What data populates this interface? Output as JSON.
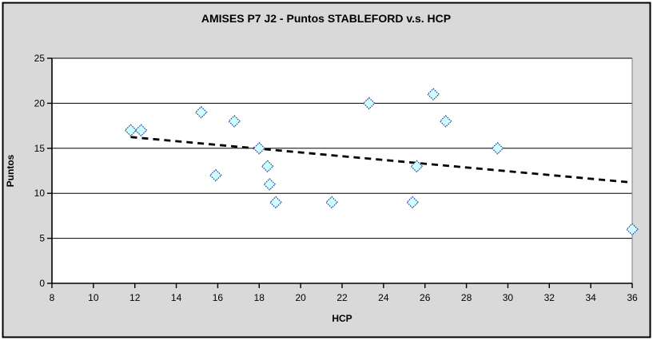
{
  "chart_data": {
    "type": "scatter",
    "title": "AMISES P7 J2 - Puntos STABLEFORD v.s. HCP",
    "xlabel": "HCP",
    "ylabel": "Puntos",
    "xlim": [
      8,
      36
    ],
    "ylim": [
      0,
      25
    ],
    "x_ticks": [
      8,
      10,
      12,
      14,
      16,
      18,
      20,
      22,
      24,
      26,
      28,
      30,
      32,
      34,
      36
    ],
    "y_ticks": [
      0,
      5,
      10,
      15,
      20,
      25
    ],
    "grid": "horizontal-major",
    "legend": "none",
    "points": [
      [
        11.8,
        17
      ],
      [
        12.3,
        17
      ],
      [
        15.2,
        19
      ],
      [
        15.9,
        12
      ],
      [
        16.8,
        18
      ],
      [
        18.0,
        15
      ],
      [
        18.4,
        13
      ],
      [
        18.5,
        11
      ],
      [
        18.8,
        9
      ],
      [
        21.5,
        9
      ],
      [
        23.3,
        20
      ],
      [
        25.4,
        9
      ],
      [
        25.6,
        13
      ],
      [
        26.4,
        21
      ],
      [
        27.0,
        18
      ],
      [
        29.5,
        15
      ],
      [
        36,
        6
      ]
    ],
    "trendline": {
      "type": "linear",
      "style": "dashed",
      "start": [
        11.8,
        16.25
      ],
      "end": [
        36,
        11.2
      ],
      "color": "#000000"
    },
    "marker": {
      "shape": "diamond",
      "fill": "#ccffff",
      "stroke": "#2e3f92",
      "size": 14
    },
    "colors": {
      "chart_background": "#d9d9d9",
      "plot_background": "#ffffff",
      "gridline": "#000000",
      "axis": "#000000",
      "plot_right_border": "#808080",
      "frame_border": "#000000"
    }
  }
}
